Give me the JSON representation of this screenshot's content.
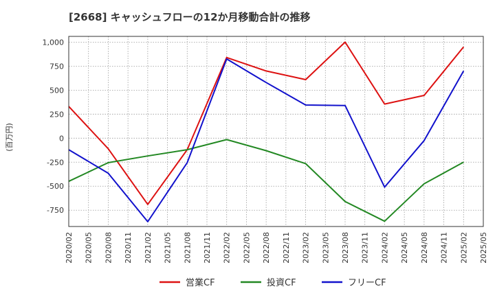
{
  "chart_data": {
    "type": "line",
    "title": "[2668]  キャッシュフローの12か月移動合計の推移",
    "ylabel": "(百万円)",
    "xlabel": "",
    "ylim": [
      -920,
      1060
    ],
    "yticks": [
      1000,
      750,
      500,
      250,
      0,
      -250,
      -500,
      -750
    ],
    "ytick_labels": [
      "1,000",
      "750",
      "500",
      "250",
      "0",
      "-250",
      "-500",
      "-750"
    ],
    "categories": [
      "2020/02",
      "2020/05",
      "2020/08",
      "2020/11",
      "2021/02",
      "2021/05",
      "2021/08",
      "2021/11",
      "2022/02",
      "2022/05",
      "2022/08",
      "2022/11",
      "2023/02",
      "2023/05",
      "2023/08",
      "2023/11",
      "2024/02",
      "2024/05",
      "2024/08",
      "2024/11",
      "2025/02",
      "2025/05"
    ],
    "grid": true,
    "legend_position": "bottom",
    "series": [
      {
        "name": "営業CF",
        "color": "#dd1111",
        "points": [
          [
            "2020/02",
            330
          ],
          [
            "2020/08",
            -110
          ],
          [
            "2021/02",
            -690
          ],
          [
            "2021/08",
            -120
          ],
          [
            "2022/02",
            840
          ],
          [
            "2022/08",
            700
          ],
          [
            "2023/02",
            610
          ],
          [
            "2023/08",
            1000
          ],
          [
            "2024/02",
            355
          ],
          [
            "2024/08",
            445
          ],
          [
            "2025/02",
            950
          ]
        ]
      },
      {
        "name": "投資CF",
        "color": "#228822",
        "points": [
          [
            "2020/02",
            -450
          ],
          [
            "2020/08",
            -255
          ],
          [
            "2021/02",
            -185
          ],
          [
            "2021/08",
            -120
          ],
          [
            "2022/02",
            -15
          ],
          [
            "2022/08",
            -130
          ],
          [
            "2023/02",
            -265
          ],
          [
            "2023/08",
            -660
          ],
          [
            "2024/02",
            -865
          ],
          [
            "2024/08",
            -475
          ],
          [
            "2025/02",
            -250
          ]
        ]
      },
      {
        "name": "フリーCF",
        "color": "#1111cc",
        "points": [
          [
            "2020/02",
            -120
          ],
          [
            "2020/08",
            -365
          ],
          [
            "2021/02",
            -870
          ],
          [
            "2021/08",
            -255
          ],
          [
            "2022/02",
            825
          ],
          [
            "2022/08",
            580
          ],
          [
            "2023/02",
            345
          ],
          [
            "2023/08",
            340
          ],
          [
            "2024/02",
            -510
          ],
          [
            "2024/08",
            -25
          ],
          [
            "2025/02",
            700
          ]
        ]
      }
    ]
  }
}
